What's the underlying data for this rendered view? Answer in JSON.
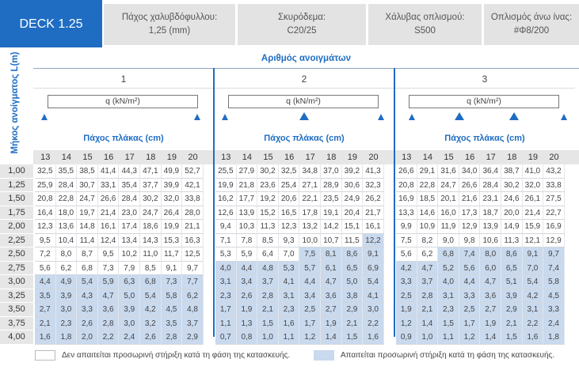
{
  "header": {
    "deck": "DECK 1.25",
    "cells": [
      {
        "l1": "Πάχος χαλυβδόφυλλου:",
        "l2": "1,25 (mm)"
      },
      {
        "l1": "Σκυρόδεμα:",
        "l2": "C20/25"
      },
      {
        "l1": "Χάλυβας οπλισμού:",
        "l2": "S500"
      },
      {
        "l1": "Οπλισμός άνω ίνας:",
        "l2": "#Φ8/200"
      }
    ]
  },
  "spans_title": "Αριθμός ανοιγμάτων",
  "span_length_label": "Μήκος ανοίγματος L(m)",
  "load_label": "q (kN/m²)",
  "slab_thickness_label": "Πάχος πλάκας (cm)",
  "spans": [
    "1",
    "2",
    "3"
  ],
  "thicknesses": [
    "13",
    "14",
    "15",
    "16",
    "17",
    "18",
    "19",
    "20"
  ],
  "lengths": [
    "1,00",
    "1,25",
    "1,50",
    "1,75",
    "2,00",
    "2,25",
    "2,50",
    "2,75",
    "3,00",
    "3,25",
    "3,50",
    "3,75",
    "4,00"
  ],
  "table": [
    {
      "L": "1,00",
      "s1": [
        "32,5",
        "35,5",
        "38,5",
        "41,4",
        "44,3",
        "47,1",
        "49,9",
        "52,7"
      ],
      "s2": [
        "25,5",
        "27,9",
        "30,2",
        "32,5",
        "34,8",
        "37,0",
        "39,2",
        "41,3"
      ],
      "s3": [
        "26,6",
        "29,1",
        "31,6",
        "34,0",
        "36,4",
        "38,7",
        "41,0",
        "43,2"
      ]
    },
    {
      "L": "1,25",
      "s1": [
        "25,9",
        "28,4",
        "30,7",
        "33,1",
        "35,4",
        "37,7",
        "39,9",
        "42,1"
      ],
      "s2": [
        "19,9",
        "21,8",
        "23,6",
        "25,4",
        "27,1",
        "28,9",
        "30,6",
        "32,3"
      ],
      "s3": [
        "20,8",
        "22,8",
        "24,7",
        "26,6",
        "28,4",
        "30,2",
        "32,0",
        "33,8"
      ]
    },
    {
      "L": "1,50",
      "s1": [
        "20,8",
        "22,8",
        "24,7",
        "26,6",
        "28,4",
        "30,2",
        "32,0",
        "33,8"
      ],
      "s2": [
        "16,2",
        "17,7",
        "19,2",
        "20,6",
        "22,1",
        "23,5",
        "24,9",
        "26,2"
      ],
      "s3": [
        "16,9",
        "18,5",
        "20,1",
        "21,6",
        "23,1",
        "24,6",
        "26,1",
        "27,5"
      ]
    },
    {
      "L": "1,75",
      "s1": [
        "16,4",
        "18,0",
        "19,7",
        "21,4",
        "23,0",
        "24,7",
        "26,4",
        "28,0"
      ],
      "s2": [
        "12,6",
        "13,9",
        "15,2",
        "16,5",
        "17,8",
        "19,1",
        "20,4",
        "21,7"
      ],
      "s3": [
        "13,3",
        "14,6",
        "16,0",
        "17,3",
        "18,7",
        "20,0",
        "21,4",
        "22,7"
      ]
    },
    {
      "L": "2,00",
      "s1": [
        "12,3",
        "13,6",
        "14,8",
        "16,1",
        "17,4",
        "18,6",
        "19,9",
        "21,1"
      ],
      "s2": [
        "9,4",
        "10,3",
        "11,3",
        "12,3",
        "13,2",
        "14,2",
        "15,1",
        "16,1"
      ],
      "s3": [
        "9,9",
        "10,9",
        "11,9",
        "12,9",
        "13,9",
        "14,9",
        "15,9",
        "16,9"
      ]
    },
    {
      "L": "2,25",
      "s1": [
        "9,5",
        "10,4",
        "11,4",
        "12,4",
        "13,4",
        "14,3",
        "15,3",
        "16,3"
      ],
      "s2": [
        "7,1",
        "7,8",
        "8,5",
        "9,3",
        "10,0",
        "10,7",
        "11,5",
        "12,2"
      ],
      "s3": [
        "7,5",
        "8,2",
        "9,0",
        "9,8",
        "10,6",
        "11,3",
        "12,1",
        "12,9"
      ]
    },
    {
      "L": "2,50",
      "s1": [
        "7,2",
        "8,0",
        "8,7",
        "9,5",
        "10,2",
        "11,0",
        "11,7",
        "12,5"
      ],
      "s2": [
        "5,3",
        "5,9",
        "6,4",
        "7,0",
        "7,5",
        "8,1",
        "8,6",
        "9,1"
      ],
      "s3": [
        "5,6",
        "6,2",
        "6,8",
        "7,4",
        "8,0",
        "8,6",
        "9,1",
        "9,7"
      ]
    },
    {
      "L": "2,75",
      "s1": [
        "5,6",
        "6,2",
        "6,8",
        "7,3",
        "7,9",
        "8,5",
        "9,1",
        "9,7"
      ],
      "s2": [
        "4,0",
        "4,4",
        "4,8",
        "5,3",
        "5,7",
        "6,1",
        "6,5",
        "6,9"
      ],
      "s3": [
        "4,2",
        "4,7",
        "5,2",
        "5,6",
        "6,0",
        "6,5",
        "7,0",
        "7,4"
      ]
    },
    {
      "L": "3,00",
      "s1": [
        "4,4",
        "4,9",
        "5,4",
        "5,9",
        "6,3",
        "6,8",
        "7,3",
        "7,7"
      ],
      "s2": [
        "3,1",
        "3,4",
        "3,7",
        "4,1",
        "4,4",
        "4,7",
        "5,0",
        "5,4"
      ],
      "s3": [
        "3,3",
        "3,7",
        "4,0",
        "4,4",
        "4,7",
        "5,1",
        "5,4",
        "5,8"
      ]
    },
    {
      "L": "3,25",
      "s1": [
        "3,5",
        "3,9",
        "4,3",
        "4,7",
        "5,0",
        "5,4",
        "5,8",
        "6,2"
      ],
      "s2": [
        "2,3",
        "2,6",
        "2,8",
        "3,1",
        "3,4",
        "3,6",
        "3,8",
        "4,1"
      ],
      "s3": [
        "2,5",
        "2,8",
        "3,1",
        "3,3",
        "3,6",
        "3,9",
        "4,2",
        "4,5"
      ]
    },
    {
      "L": "3,50",
      "s1": [
        "2,7",
        "3,0",
        "3,3",
        "3,6",
        "3,9",
        "4,2",
        "4,5",
        "4,8"
      ],
      "s2": [
        "1,7",
        "1,9",
        "2,1",
        "2,3",
        "2,5",
        "2,7",
        "2,9",
        "3,0"
      ],
      "s3": [
        "1,9",
        "2,1",
        "2,3",
        "2,5",
        "2,7",
        "2,9",
        "3,1",
        "3,3"
      ]
    },
    {
      "L": "3,75",
      "s1": [
        "2,1",
        "2,3",
        "2,6",
        "2,8",
        "3,0",
        "3,2",
        "3,5",
        "3,7"
      ],
      "s2": [
        "1,1",
        "1,3",
        "1,5",
        "1,6",
        "1,7",
        "1,9",
        "2,1",
        "2,2"
      ],
      "s3": [
        "1,2",
        "1,4",
        "1,5",
        "1,7",
        "1,9",
        "2,1",
        "2,2",
        "2,4"
      ]
    },
    {
      "L": "4,00",
      "s1": [
        "1,6",
        "1,8",
        "2,0",
        "2,2",
        "2,4",
        "2,6",
        "2,8",
        "2,9"
      ],
      "s2": [
        "0,7",
        "0,8",
        "1,0",
        "1,1",
        "1,2",
        "1,4",
        "1,5",
        "1,6"
      ],
      "s3": [
        "0,9",
        "1,0",
        "1,1",
        "1,2",
        "1,4",
        "1,5",
        "1,6",
        "1,8"
      ]
    }
  ],
  "shaded": {
    "s1": [
      [
        9,
        8
      ],
      [
        10,
        8
      ],
      [
        11,
        8
      ],
      [
        12,
        8
      ],
      [
        13,
        8
      ]
    ],
    "s2": [
      [
        6,
        1
      ],
      [
        7,
        4
      ],
      [
        8,
        8
      ],
      [
        9,
        8
      ],
      [
        10,
        8
      ],
      [
        11,
        8
      ],
      [
        12,
        8
      ],
      [
        13,
        8
      ]
    ],
    "s3": [
      [
        7,
        6
      ],
      [
        8,
        8
      ],
      [
        9,
        8
      ],
      [
        10,
        8
      ],
      [
        11,
        8
      ],
      [
        12,
        8
      ],
      [
        13,
        8
      ]
    ]
  },
  "legend": {
    "no_support": "Δεν απαιτείται προσωρινή στήριξη κατά τη φάση της κατασκευής.",
    "support": "Απαιτείται προσωρινή στήριξη κατά τη φάση της κατασκευής."
  },
  "colors": {
    "accent": "#1f6dc3",
    "shaded": "#c9d9ee",
    "header_gray": "#e3e3e3"
  }
}
